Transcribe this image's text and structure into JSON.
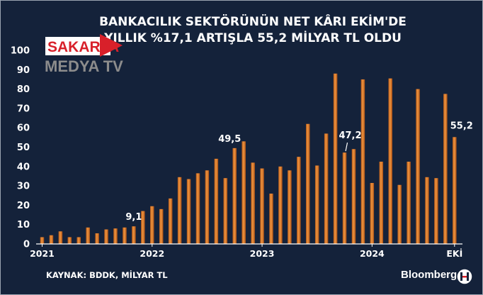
{
  "chart_data": {
    "type": "bar",
    "title_line1": "BANKACILIK SEKTÖRÜNÜN NET KÂRI EKİM'DE",
    "title_line2": "YILLIK %17,1 ARTIŞLA 55,2 MİLYAR TL OLDU",
    "ylim": [
      0,
      100
    ],
    "y_ticks": [
      "0",
      "10",
      "20",
      "30",
      "40",
      "50",
      "60",
      "70",
      "80",
      "90",
      "100"
    ],
    "x_ticks": [
      "2021",
      "2022",
      "2023",
      "2024",
      "EKİ"
    ],
    "values": [
      3.5,
      4.5,
      6.5,
      3.5,
      3.5,
      8.5,
      5.5,
      7.5,
      8,
      8.5,
      9.1,
      17,
      19.5,
      18,
      23.5,
      34.5,
      33.5,
      36.5,
      38,
      44,
      34,
      49.5,
      53,
      42,
      39,
      26,
      40,
      38,
      45,
      62,
      40.5,
      57,
      88,
      47.2,
      49,
      85,
      31.5,
      42.5,
      85.5,
      30.5,
      42.5,
      80,
      34.5,
      34,
      77.5,
      55.2
    ],
    "data_labels": [
      {
        "index": 10,
        "text": "9,1"
      },
      {
        "index": 21,
        "text": "49,5"
      },
      {
        "index": 33,
        "text": "47,2"
      },
      {
        "index": 45,
        "text": "55,2"
      }
    ],
    "bar_color": "#d7772a",
    "background_color": "#14223a"
  },
  "source": "KAYNAK: BDDK, MİLYAR TL",
  "brand": "Bloomberg",
  "watermark": {
    "line1": "SAKARYA",
    "line2": "MEDYA TV"
  }
}
